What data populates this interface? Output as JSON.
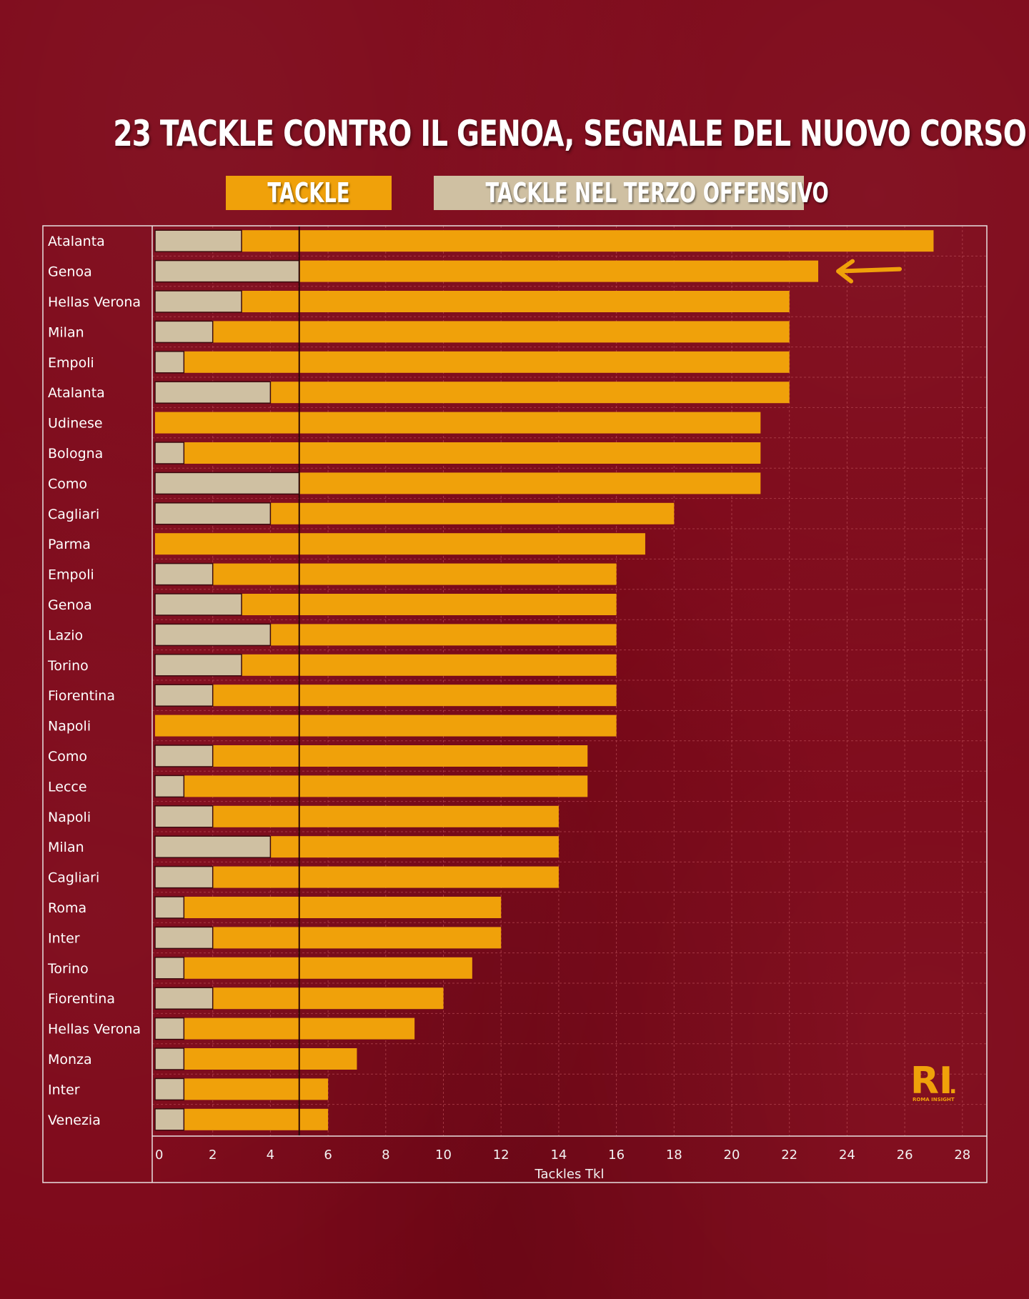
{
  "title": "23 TACKLE CONTRO IL GENOA, SEGNALE DEL NUOVO CORSO",
  "legend": {
    "tackle": "TACKLE",
    "terzo": "TACKLE NEL TERZO OFFENSIVO"
  },
  "colors": {
    "background": "#7d0718",
    "tackle": "#f0a10a",
    "terzo": "#cfc0a2",
    "grid": "#b84a55",
    "frame": "#e8e0e0"
  },
  "logo": {
    "mark": "RI",
    "dot": ".",
    "sub": "ROMA INSIGHT"
  },
  "chart_data": {
    "type": "bar",
    "orientation": "horizontal",
    "categories": [
      "Atalanta",
      "Genoa",
      "Hellas Verona",
      "Milan",
      "Empoli",
      "Atalanta",
      "Udinese",
      "Bologna",
      "Como",
      "Cagliari",
      "Parma",
      "Empoli",
      "Genoa",
      "Lazio",
      "Torino",
      "Fiorentina",
      "Napoli",
      "Como",
      "Lecce",
      "Napoli",
      "Milan",
      "Cagliari",
      "Roma",
      "Inter",
      "Torino",
      "Fiorentina",
      "Hellas Verona",
      "Monza",
      "Inter",
      "Venezia"
    ],
    "series": [
      {
        "name": "TACKLE",
        "values": [
          27,
          23,
          22,
          22,
          22,
          22,
          21,
          21,
          21,
          18,
          17,
          16,
          16,
          16,
          16,
          16,
          16,
          15,
          15,
          14,
          14,
          14,
          12,
          12,
          11,
          10,
          9,
          7,
          6,
          6
        ]
      },
      {
        "name": "TACKLE NEL TERZO OFFENSIVO",
        "values": [
          3,
          5,
          3,
          2,
          1,
          4,
          0,
          1,
          5,
          4,
          0,
          2,
          3,
          4,
          3,
          2,
          0,
          2,
          1,
          2,
          4,
          2,
          1,
          2,
          1,
          2,
          1,
          1,
          1,
          1
        ]
      }
    ],
    "xlabel": "Tackles Tkl",
    "ylabel": "",
    "xlim": [
      0,
      29
    ],
    "xticks": [
      0,
      2,
      4,
      6,
      8,
      10,
      12,
      14,
      16,
      18,
      20,
      22,
      24,
      26,
      28
    ],
    "reference_line": 5,
    "highlight_category_index": 1,
    "grid": true
  }
}
